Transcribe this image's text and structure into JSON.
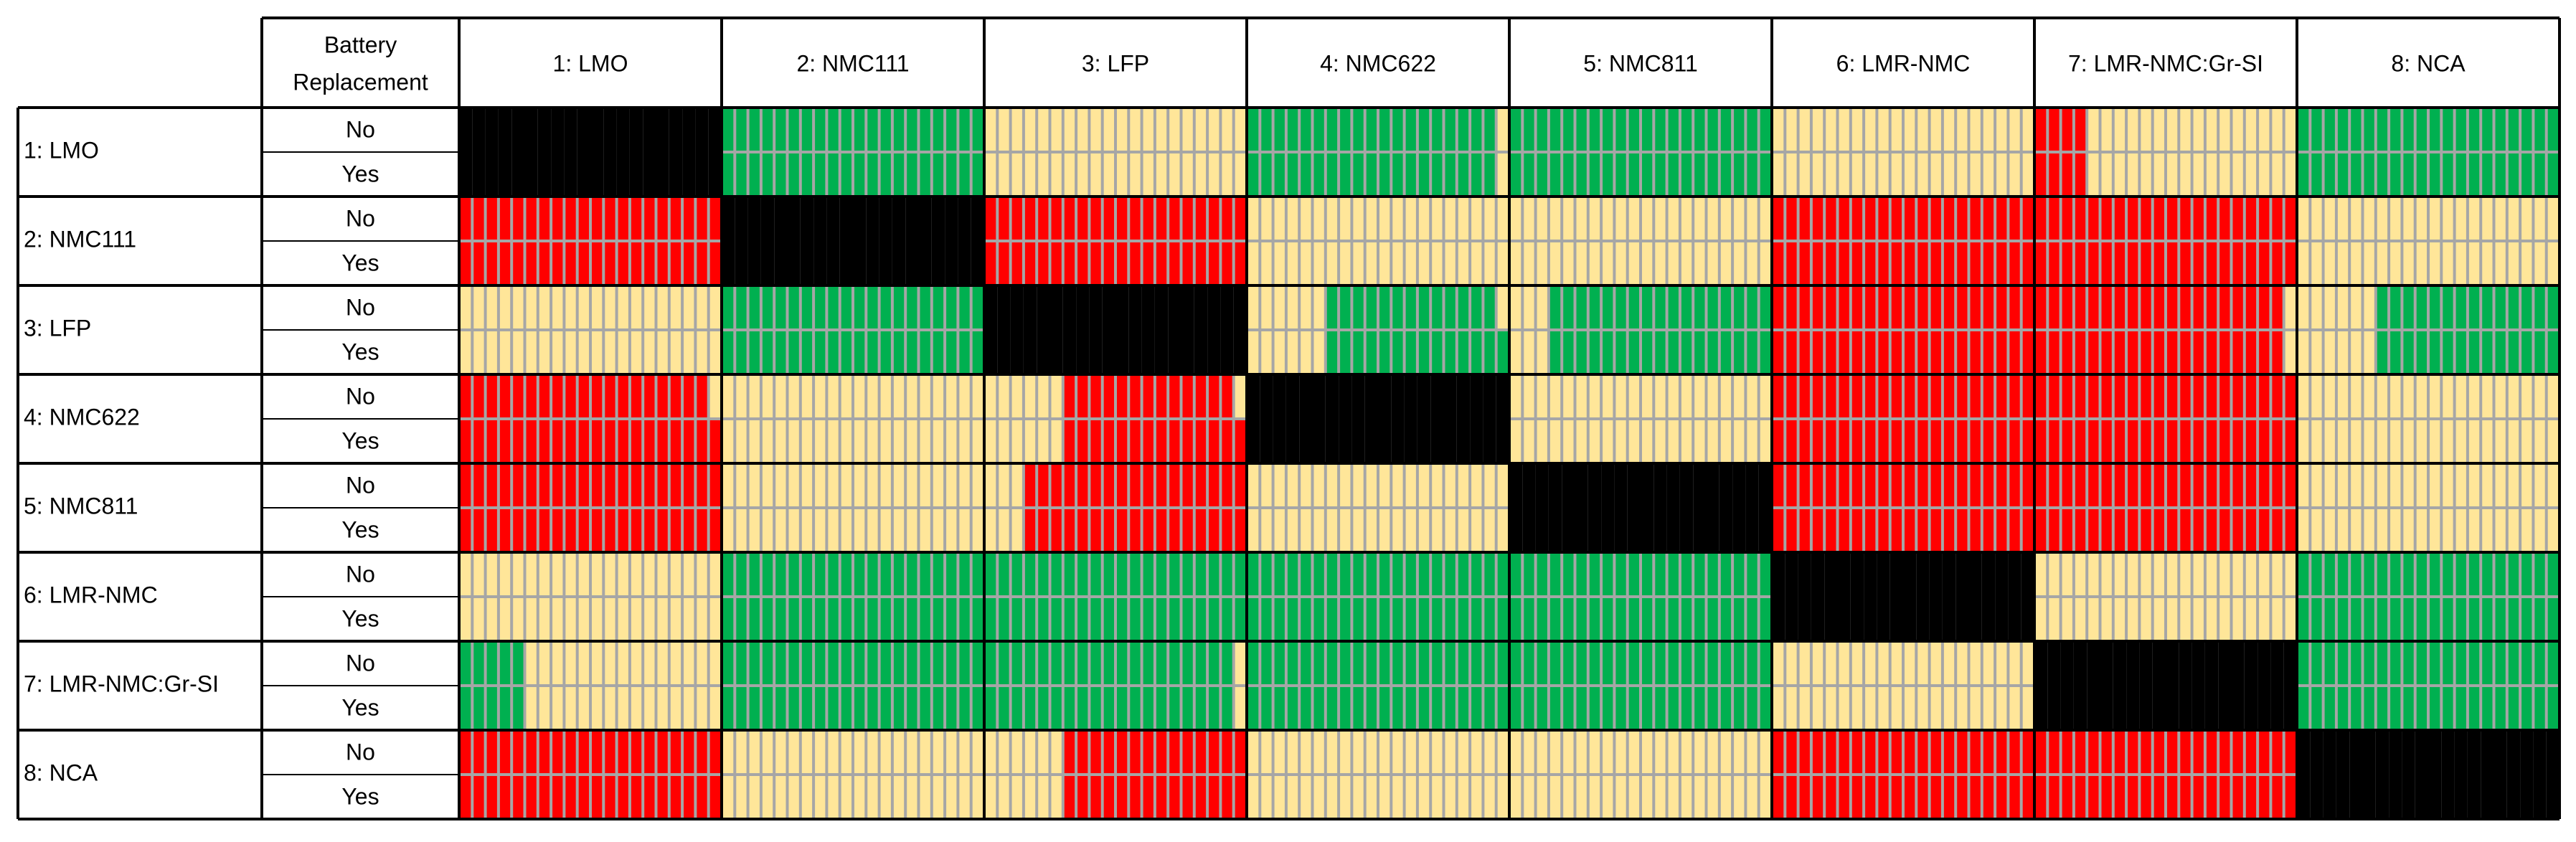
{
  "chart_data": {
    "type": "heatmap",
    "corner_header": [
      "Battery",
      "Replacement"
    ],
    "columns": [
      "1: LMO",
      "2: NMC111",
      "3: LFP",
      "4: NMC622",
      "5: NMC811",
      "6: LMR-NMC",
      "7: LMR-NMC:Gr-SI",
      "8: NCA"
    ],
    "rows": [
      "1: LMO",
      "2: NMC111",
      "3: LFP",
      "4: NMC622",
      "5: NMC811",
      "6: LMR-NMC",
      "7: LMR-NMC:Gr-SI",
      "8: NCA"
    ],
    "sub_rows": [
      "No",
      "Yes"
    ],
    "cells_per_block": 20,
    "legend_colors": {
      "R": "#ff0000",
      "Y": "#ffe699",
      "G": "#00b050",
      "K": "#000000",
      "grid": "#a6a6a6"
    },
    "blocks": [
      [
        [
          [
            "K",
            20
          ]
        ],
        [
          [
            "K",
            20
          ]
        ],
        [
          [
            "G",
            20
          ]
        ],
        [
          [
            "G",
            20
          ]
        ],
        [
          [
            "Y",
            20
          ]
        ],
        [
          [
            "Y",
            20
          ]
        ],
        [
          [
            "G",
            19
          ],
          [
            "Y",
            1
          ]
        ],
        [
          [
            "G",
            19
          ],
          [
            "Y",
            1
          ]
        ],
        [
          [
            "G",
            20
          ]
        ],
        [
          [
            "G",
            20
          ]
        ],
        [
          [
            "Y",
            20
          ]
        ],
        [
          [
            "Y",
            20
          ]
        ],
        [
          [
            "R",
            4
          ],
          [
            "Y",
            16
          ]
        ],
        [
          [
            "R",
            4
          ],
          [
            "Y",
            16
          ]
        ],
        [
          [
            "G",
            20
          ]
        ],
        [
          [
            "G",
            20
          ]
        ]
      ],
      [
        [
          [
            "R",
            20
          ]
        ],
        [
          [
            "R",
            20
          ]
        ],
        [
          [
            "K",
            20
          ]
        ],
        [
          [
            "K",
            20
          ]
        ],
        [
          [
            "R",
            20
          ]
        ],
        [
          [
            "R",
            20
          ]
        ],
        [
          [
            "Y",
            20
          ]
        ],
        [
          [
            "Y",
            20
          ]
        ],
        [
          [
            "Y",
            20
          ]
        ],
        [
          [
            "Y",
            20
          ]
        ],
        [
          [
            "R",
            20
          ]
        ],
        [
          [
            "R",
            20
          ]
        ],
        [
          [
            "R",
            20
          ]
        ],
        [
          [
            "R",
            20
          ]
        ],
        [
          [
            "Y",
            20
          ]
        ],
        [
          [
            "Y",
            20
          ]
        ]
      ],
      [
        [
          [
            "Y",
            20
          ]
        ],
        [
          [
            "Y",
            20
          ]
        ],
        [
          [
            "G",
            20
          ]
        ],
        [
          [
            "G",
            20
          ]
        ],
        [
          [
            "K",
            20
          ]
        ],
        [
          [
            "K",
            20
          ]
        ],
        [
          [
            "Y",
            6
          ],
          [
            "G",
            13
          ],
          [
            "Y",
            1
          ]
        ],
        [
          [
            "Y",
            6
          ],
          [
            "G",
            14
          ]
        ],
        [
          [
            "Y",
            3
          ],
          [
            "G",
            17
          ]
        ],
        [
          [
            "Y",
            3
          ],
          [
            "G",
            17
          ]
        ],
        [
          [
            "R",
            20
          ]
        ],
        [
          [
            "R",
            20
          ]
        ],
        [
          [
            "R",
            19
          ],
          [
            "Y",
            1
          ]
        ],
        [
          [
            "R",
            19
          ],
          [
            "Y",
            1
          ]
        ],
        [
          [
            "Y",
            6
          ],
          [
            "G",
            14
          ]
        ],
        [
          [
            "Y",
            6
          ],
          [
            "G",
            14
          ]
        ]
      ],
      [
        [
          [
            "R",
            19
          ],
          [
            "Y",
            1
          ]
        ],
        [
          [
            "R",
            20
          ]
        ],
        [
          [
            "Y",
            20
          ]
        ],
        [
          [
            "Y",
            20
          ]
        ],
        [
          [
            "Y",
            6
          ],
          [
            "R",
            13
          ],
          [
            "Y",
            1
          ]
        ],
        [
          [
            "Y",
            6
          ],
          [
            "R",
            14
          ]
        ],
        [
          [
            "K",
            20
          ]
        ],
        [
          [
            "K",
            20
          ]
        ],
        [
          [
            "Y",
            20
          ]
        ],
        [
          [
            "Y",
            20
          ]
        ],
        [
          [
            "R",
            20
          ]
        ],
        [
          [
            "R",
            20
          ]
        ],
        [
          [
            "R",
            20
          ]
        ],
        [
          [
            "R",
            20
          ]
        ],
        [
          [
            "Y",
            20
          ]
        ],
        [
          [
            "Y",
            20
          ]
        ]
      ],
      [
        [
          [
            "R",
            20
          ]
        ],
        [
          [
            "R",
            20
          ]
        ],
        [
          [
            "Y",
            20
          ]
        ],
        [
          [
            "Y",
            20
          ]
        ],
        [
          [
            "Y",
            3
          ],
          [
            "R",
            17
          ]
        ],
        [
          [
            "Y",
            3
          ],
          [
            "R",
            17
          ]
        ],
        [
          [
            "Y",
            20
          ]
        ],
        [
          [
            "Y",
            20
          ]
        ],
        [
          [
            "K",
            20
          ]
        ],
        [
          [
            "K",
            20
          ]
        ],
        [
          [
            "R",
            20
          ]
        ],
        [
          [
            "R",
            20
          ]
        ],
        [
          [
            "R",
            20
          ]
        ],
        [
          [
            "R",
            20
          ]
        ],
        [
          [
            "Y",
            20
          ]
        ],
        [
          [
            "Y",
            20
          ]
        ]
      ],
      [
        [
          [
            "Y",
            20
          ]
        ],
        [
          [
            "Y",
            20
          ]
        ],
        [
          [
            "G",
            20
          ]
        ],
        [
          [
            "G",
            20
          ]
        ],
        [
          [
            "G",
            20
          ]
        ],
        [
          [
            "G",
            20
          ]
        ],
        [
          [
            "G",
            20
          ]
        ],
        [
          [
            "G",
            20
          ]
        ],
        [
          [
            "G",
            20
          ]
        ],
        [
          [
            "G",
            20
          ]
        ],
        [
          [
            "K",
            20
          ]
        ],
        [
          [
            "K",
            20
          ]
        ],
        [
          [
            "Y",
            20
          ]
        ],
        [
          [
            "Y",
            20
          ]
        ],
        [
          [
            "G",
            20
          ]
        ],
        [
          [
            "G",
            20
          ]
        ]
      ],
      [
        [
          [
            "G",
            5
          ],
          [
            "Y",
            15
          ]
        ],
        [
          [
            "G",
            5
          ],
          [
            "Y",
            15
          ]
        ],
        [
          [
            "G",
            20
          ]
        ],
        [
          [
            "G",
            20
          ]
        ],
        [
          [
            "G",
            19
          ],
          [
            "Y",
            1
          ]
        ],
        [
          [
            "G",
            19
          ],
          [
            "Y",
            1
          ]
        ],
        [
          [
            "G",
            20
          ]
        ],
        [
          [
            "G",
            20
          ]
        ],
        [
          [
            "G",
            20
          ]
        ],
        [
          [
            "G",
            20
          ]
        ],
        [
          [
            "Y",
            20
          ]
        ],
        [
          [
            "Y",
            20
          ]
        ],
        [
          [
            "K",
            20
          ]
        ],
        [
          [
            "K",
            20
          ]
        ],
        [
          [
            "G",
            20
          ]
        ],
        [
          [
            "G",
            20
          ]
        ]
      ],
      [
        [
          [
            "R",
            20
          ]
        ],
        [
          [
            "R",
            20
          ]
        ],
        [
          [
            "Y",
            20
          ]
        ],
        [
          [
            "Y",
            20
          ]
        ],
        [
          [
            "Y",
            6
          ],
          [
            "R",
            14
          ]
        ],
        [
          [
            "Y",
            6
          ],
          [
            "R",
            14
          ]
        ],
        [
          [
            "Y",
            20
          ]
        ],
        [
          [
            "Y",
            20
          ]
        ],
        [
          [
            "Y",
            20
          ]
        ],
        [
          [
            "Y",
            20
          ]
        ],
        [
          [
            "R",
            20
          ]
        ],
        [
          [
            "R",
            20
          ]
        ],
        [
          [
            "R",
            20
          ]
        ],
        [
          [
            "R",
            20
          ]
        ],
        [
          [
            "K",
            20
          ]
        ],
        [
          [
            "K",
            20
          ]
        ]
      ]
    ]
  }
}
